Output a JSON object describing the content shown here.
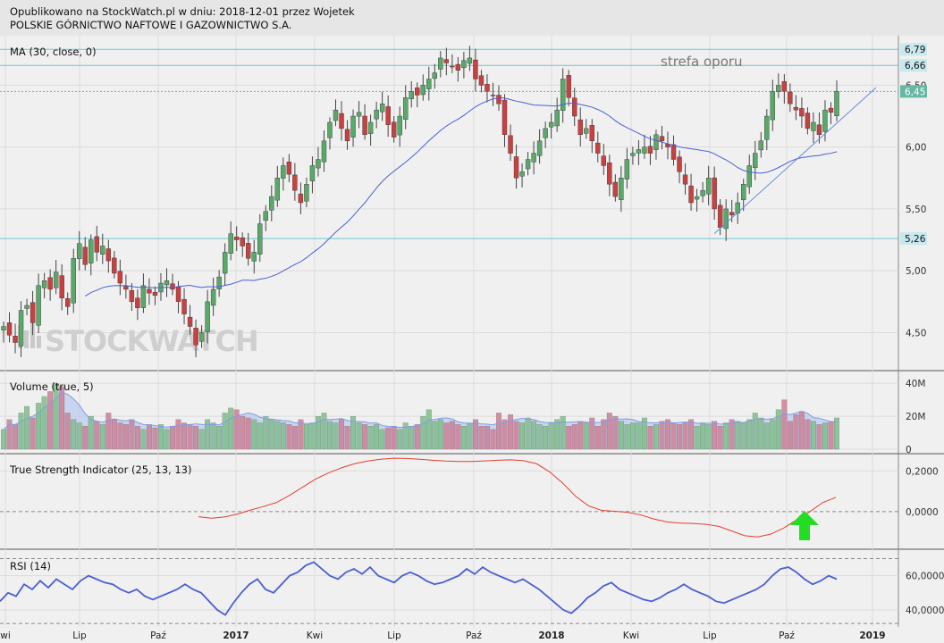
{
  "header": {
    "line1": "Opublikowano na StockWatch.pl w dniu: 2018-12-01 przez Wojetek",
    "line2": "POLSKIE GÓRNICTWO NAFTOWE I GAZOWNICTWO S.A."
  },
  "watermark": "STOCKWATCH",
  "colors": {
    "up": "#5aa86a",
    "down": "#c94040",
    "ma": "#4a5fd0",
    "tsi": "#e04030",
    "rsi": "#4a5fd0",
    "hline": "#60c0c8",
    "trend": "#6a8ad8",
    "arrow": "#22dd22"
  },
  "chart_data": [
    {
      "type": "candlestick",
      "title": "MA (30, close, 0)",
      "ylim": [
        4.2,
        6.9
      ],
      "y_ticks": [
        "4,50",
        "5,00",
        "5,50",
        "6,00",
        "6,50"
      ],
      "x_labels": [
        "wi",
        "Lip",
        "Paź",
        "2017",
        "Kwi",
        "Lip",
        "Paź",
        "2018",
        "Kwi",
        "Lip",
        "Paź",
        "2019"
      ],
      "price_labels": [
        "6,79",
        "6,66",
        "6,45",
        "5,26"
      ],
      "annotation": "strefa oporu",
      "closes": [
        4.55,
        4.48,
        4.42,
        4.68,
        4.72,
        4.58,
        4.88,
        4.92,
        4.85,
        4.99,
        4.78,
        4.71,
        5.1,
        5.22,
        5.05,
        5.25,
        5.15,
        5.2,
        5.08,
        4.98,
        4.9,
        4.85,
        4.75,
        4.7,
        4.88,
        4.82,
        4.8,
        4.9,
        4.92,
        4.85,
        4.75,
        4.65,
        4.55,
        4.4,
        4.5,
        4.75,
        4.85,
        4.95,
        5.15,
        5.3,
        5.25,
        5.2,
        5.1,
        5.15,
        5.38,
        5.48,
        5.6,
        5.75,
        5.85,
        5.78,
        5.65,
        5.55,
        5.7,
        5.85,
        5.9,
        6.05,
        6.2,
        6.3,
        6.15,
        6.05,
        6.25,
        6.28,
        6.1,
        6.2,
        6.3,
        6.35,
        6.18,
        6.08,
        6.25,
        6.4,
        6.45,
        6.42,
        6.5,
        6.55,
        6.6,
        6.72,
        6.68,
        6.65,
        6.62,
        6.7,
        6.72,
        6.55,
        6.5,
        6.45,
        6.42,
        6.35,
        6.1,
        5.95,
        5.75,
        5.8,
        5.9,
        5.95,
        6.05,
        6.15,
        6.2,
        6.3,
        6.55,
        6.4,
        6.25,
        6.1,
        6.15,
        6.05,
        5.95,
        5.85,
        5.7,
        5.6,
        5.75,
        5.9,
        5.95,
        5.98,
        6.0,
        5.95,
        6.1,
        6.05,
        6.0,
        5.9,
        5.8,
        5.7,
        5.55,
        5.6,
        5.65,
        5.75,
        5.5,
        5.35,
        5.5,
        5.45,
        5.55,
        5.7,
        5.85,
        5.95,
        6.05,
        6.25,
        6.45,
        6.5,
        6.45,
        6.35,
        6.3,
        6.25,
        6.15,
        6.2,
        6.1,
        6.3,
        6.28,
        6.45
      ]
    },
    {
      "type": "bar",
      "title": "Volume (true, 5)",
      "ylim": [
        0,
        45
      ],
      "y_ticks": [
        "0",
        "20M",
        "40M"
      ],
      "values_millions": [
        12,
        18,
        15,
        22,
        26,
        19,
        28,
        32,
        35,
        40,
        38,
        22,
        18,
        16,
        14,
        20,
        17,
        15,
        22,
        18,
        16,
        15,
        18,
        14,
        12,
        15,
        13,
        15,
        12,
        14,
        18,
        16,
        15,
        14,
        12,
        18,
        16,
        14,
        22,
        25,
        24,
        20,
        19,
        18,
        16,
        20,
        18,
        17,
        16,
        15,
        14,
        18,
        15,
        16,
        20,
        22,
        17,
        16,
        18,
        14,
        20,
        16,
        15,
        14,
        15,
        12,
        13,
        14,
        12,
        16,
        14,
        15,
        20,
        24,
        17,
        18,
        16,
        17,
        15,
        14,
        16,
        18,
        14,
        14,
        12,
        22,
        18,
        21,
        17,
        16,
        19,
        17,
        15,
        14,
        16,
        18,
        20,
        14,
        15,
        17,
        16,
        19,
        14,
        18,
        22,
        20,
        17,
        15,
        16,
        16,
        19,
        14,
        15,
        17,
        18,
        16,
        15,
        16,
        18,
        14,
        16,
        15,
        17,
        14,
        16,
        18,
        17,
        16,
        18,
        22,
        19,
        16,
        18,
        24,
        30,
        17,
        21,
        23,
        18,
        17,
        15,
        16,
        17,
        19
      ]
    },
    {
      "type": "line",
      "title": "True Strength Indicator (25, 13, 13)",
      "ylim": [
        -0.18,
        0.28
      ],
      "y_ticks": [
        "0,2000",
        "0,0000"
      ],
      "values": [
        -0.025,
        -0.032,
        -0.026,
        -0.012,
        0.008,
        0.025,
        0.045,
        0.08,
        0.12,
        0.16,
        0.19,
        0.215,
        0.235,
        0.248,
        0.257,
        0.262,
        0.261,
        0.257,
        0.252,
        0.248,
        0.246,
        0.246,
        0.249,
        0.252,
        0.254,
        0.25,
        0.235,
        0.195,
        0.14,
        0.075,
        0.028,
        0.006,
        0.002,
        -0.003,
        -0.016,
        -0.036,
        -0.05,
        -0.056,
        -0.058,
        -0.062,
        -0.072,
        -0.095,
        -0.118,
        -0.124,
        -0.11,
        -0.08,
        -0.04,
        0.0,
        0.045,
        0.07
      ]
    },
    {
      "type": "line",
      "title": "RSI (14)",
      "ylim": [
        30,
        75
      ],
      "y_ticks": [
        "60,0000",
        "40,0000"
      ],
      "values": [
        45,
        50,
        48,
        55,
        52,
        57,
        53,
        58,
        55,
        52,
        57,
        60,
        58,
        56,
        55,
        52,
        50,
        52,
        48,
        46,
        48,
        50,
        52,
        55,
        52,
        50,
        45,
        40,
        37,
        44,
        50,
        55,
        58,
        52,
        50,
        55,
        60,
        62,
        66,
        68,
        64,
        60,
        58,
        62,
        64,
        61,
        65,
        60,
        58,
        56,
        60,
        62,
        60,
        57,
        55,
        56,
        58,
        60,
        64,
        61,
        65,
        62,
        60,
        58,
        56,
        58,
        55,
        52,
        48,
        44,
        40,
        38,
        42,
        47,
        50,
        54,
        56,
        52,
        50,
        48,
        46,
        45,
        47,
        50,
        52,
        55,
        52,
        50,
        48,
        45,
        44,
        46,
        48,
        50,
        52,
        55,
        60,
        64,
        65,
        62,
        58,
        55,
        57,
        60,
        58
      ]
    }
  ]
}
